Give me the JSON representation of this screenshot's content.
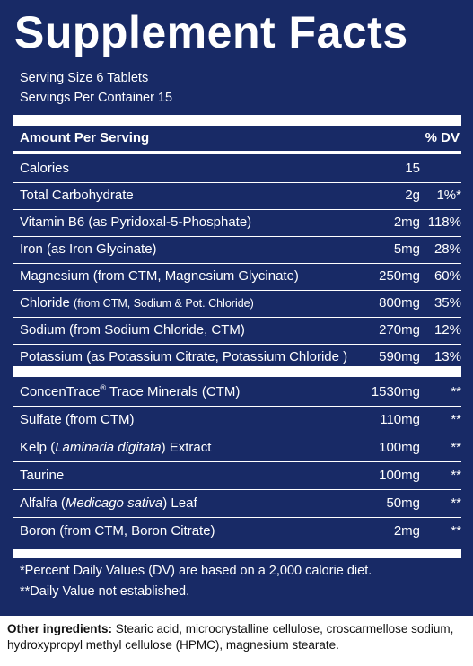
{
  "title": "Supplement Facts",
  "serving_size": "Serving Size 6 Tablets",
  "servings_per_container": "Servings Per Container 15",
  "header": {
    "amount_label": "Amount Per Serving",
    "dv_label": "% DV"
  },
  "nutrients": [
    {
      "name": "Calories",
      "name_small": "",
      "amount": "15",
      "dv": ""
    },
    {
      "name": "Total Carbohydrate",
      "name_small": "",
      "amount": "2g",
      "dv": "1%*"
    },
    {
      "name": "Vitamin B6 (as Pyridoxal-5-Phosphate)",
      "name_small": "",
      "amount": "2mg",
      "dv": "118%"
    },
    {
      "name": "Iron (as Iron Glycinate)",
      "name_small": "",
      "amount": "5mg",
      "dv": "28%"
    },
    {
      "name": "Magnesium (from CTM, Magnesium Glycinate)",
      "name_small": "",
      "amount": "250mg",
      "dv": "60%"
    },
    {
      "name": "Chloride",
      "name_small": "(from CTM, Sodium & Pot. Chloride)",
      "amount": "800mg",
      "dv": "35%"
    },
    {
      "name": "Sodium (from Sodium Chloride, CTM)",
      "name_small": "",
      "amount": "270mg",
      "dv": "12%"
    },
    {
      "name": "Potassium (as Potassium Citrate, Potassium Chloride )",
      "name_small": "",
      "amount": "590mg",
      "dv": "13%"
    }
  ],
  "others": [
    {
      "name_pre": "ConcenTrace",
      "sup": "®",
      "name_italic": "",
      "name_post": " Trace Minerals (CTM)",
      "amount": "1530mg",
      "dv": "**"
    },
    {
      "name_pre": "Sulfate (from CTM)",
      "sup": "",
      "name_italic": "",
      "name_post": "",
      "amount": "110mg",
      "dv": "**"
    },
    {
      "name_pre": "Kelp (",
      "sup": "",
      "name_italic": "Laminaria digitata",
      "name_post": ") Extract",
      "amount": "100mg",
      "dv": "**"
    },
    {
      "name_pre": "Taurine",
      "sup": "",
      "name_italic": "",
      "name_post": "",
      "amount": "100mg",
      "dv": "**"
    },
    {
      "name_pre": "Alfalfa (",
      "sup": "",
      "name_italic": "Medicago sativa",
      "name_post": ") Leaf",
      "amount": "50mg",
      "dv": "**"
    },
    {
      "name_pre": "Boron (from CTM, Boron Citrate)",
      "sup": "",
      "name_italic": "",
      "name_post": "",
      "amount": "2mg",
      "dv": "**"
    }
  ],
  "footnotes": [
    "*Percent Daily Values (DV) are based on a 2,000 calorie diet.",
    "**Daily Value not established."
  ],
  "other_ingredients": {
    "label": "Other ingredients:",
    "text": " Stearic acid, microcrystalline cellulose, croscarmellose sodium, hydroxypropyl methyl cellulose (HPMC), magnesium stearate."
  },
  "colors": {
    "panel": "#182a66",
    "text_on_panel": "#ffffff",
    "body_text": "#111111"
  }
}
